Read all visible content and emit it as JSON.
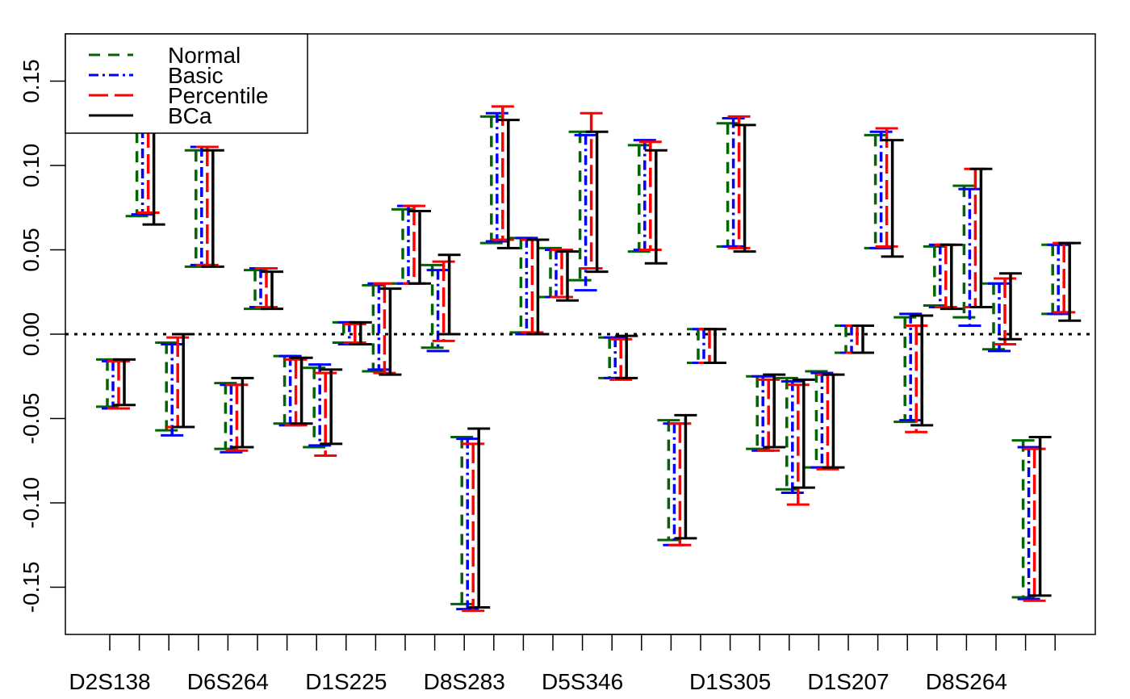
{
  "chart_data": {
    "type": "interval",
    "ylim": [
      -0.178,
      0.178
    ],
    "y_ticks": [
      -0.15,
      -0.1,
      -0.05,
      0.0,
      0.05,
      0.1,
      0.15
    ],
    "y_tick_labels": [
      "-0.15",
      "-0.10",
      "-0.05",
      "0.00",
      "0.05",
      "0.10",
      "0.15"
    ],
    "reference_line": 0,
    "grid": false,
    "x_tick_count": 33,
    "x_labels": [
      {
        "text": "D2S138",
        "tick": 1
      },
      {
        "text": "D6S264",
        "tick": 5
      },
      {
        "text": "D1S225",
        "tick": 9
      },
      {
        "text": "D8S283",
        "tick": 13
      },
      {
        "text": "D5S346",
        "tick": 17
      },
      {
        "text": "D1S305",
        "tick": 22
      },
      {
        "text": "D1S207",
        "tick": 26
      },
      {
        "text": "D8S264",
        "tick": 30
      }
    ],
    "legend": {
      "position": "top-left",
      "entries": [
        "Normal",
        "Basic",
        "Percentile",
        "BCa"
      ]
    },
    "series_styles": [
      {
        "name": "Normal",
        "color": "#006400",
        "dash": "14,10",
        "offset": -21
      },
      {
        "name": "Basic",
        "color": "#0000FF",
        "dash": "12,5,3,5",
        "offset": -14
      },
      {
        "name": "Percentile",
        "color": "#FF0000",
        "dash": "24,8",
        "offset": -7
      },
      {
        "name": "BCa",
        "color": "#000000",
        "dash": "",
        "offset": 0
      }
    ],
    "intervals": [
      {
        "slot": 1,
        "n": [
          -0.015,
          -0.043
        ],
        "b": [
          -0.016,
          -0.044
        ],
        "p": [
          -0.016,
          -0.044
        ],
        "bca": [
          -0.015,
          -0.042
        ]
      },
      {
        "slot": 2,
        "n": [
          0.12,
          0.07
        ],
        "b": [
          0.122,
          0.071
        ],
        "p": [
          0.122,
          0.072
        ],
        "bca": [
          0.12,
          0.065
        ]
      },
      {
        "slot": 3,
        "n": [
          -0.005,
          -0.057
        ],
        "b": [
          -0.006,
          -0.06
        ],
        "p": [
          -0.002,
          -0.055
        ],
        "bca": [
          0.0,
          -0.055
        ]
      },
      {
        "slot": 4,
        "n": [
          0.109,
          0.04
        ],
        "b": [
          0.111,
          0.041
        ],
        "p": [
          0.111,
          0.041
        ],
        "bca": [
          0.109,
          0.04
        ]
      },
      {
        "slot": 5,
        "n": [
          -0.029,
          -0.068
        ],
        "b": [
          -0.03,
          -0.07
        ],
        "p": [
          -0.03,
          -0.069
        ],
        "bca": [
          -0.026,
          -0.067
        ]
      },
      {
        "slot": 6,
        "n": [
          0.038,
          0.015
        ],
        "b": [
          0.039,
          0.016
        ],
        "p": [
          0.039,
          0.016
        ],
        "bca": [
          0.037,
          0.015
        ]
      },
      {
        "slot": 7,
        "n": [
          -0.013,
          -0.053
        ],
        "b": [
          -0.013,
          -0.054
        ],
        "p": [
          -0.015,
          -0.054
        ],
        "bca": [
          -0.014,
          -0.053
        ]
      },
      {
        "slot": 8,
        "n": [
          -0.02,
          -0.067
        ],
        "b": [
          -0.018,
          -0.066
        ],
        "p": [
          -0.023,
          -0.072
        ],
        "bca": [
          -0.021,
          -0.065
        ]
      },
      {
        "slot": 9,
        "n": [
          0.007,
          -0.005
        ],
        "b": [
          0.007,
          -0.006
        ],
        "p": [
          0.006,
          -0.005
        ],
        "bca": [
          0.007,
          -0.006
        ]
      },
      {
        "slot": 10,
        "n": [
          0.029,
          -0.022
        ],
        "b": [
          0.03,
          -0.021
        ],
        "p": [
          0.03,
          -0.023
        ],
        "bca": [
          0.027,
          -0.024
        ]
      },
      {
        "slot": 11,
        "n": [
          0.074,
          0.03
        ],
        "b": [
          0.076,
          0.03
        ],
        "p": [
          0.076,
          0.03
        ],
        "bca": [
          0.073,
          0.03
        ]
      },
      {
        "slot": 12,
        "n": [
          0.041,
          -0.008
        ],
        "b": [
          0.038,
          -0.01
        ],
        "p": [
          0.043,
          -0.004
        ],
        "bca": [
          0.047,
          0.0
        ]
      },
      {
        "slot": 13,
        "n": [
          -0.061,
          -0.16
        ],
        "b": [
          -0.062,
          -0.163
        ],
        "p": [
          -0.065,
          -0.164
        ],
        "bca": [
          -0.056,
          -0.162
        ]
      },
      {
        "slot": 14,
        "n": [
          0.129,
          0.054
        ],
        "b": [
          0.131,
          0.055
        ],
        "p": [
          0.135,
          0.056
        ],
        "bca": [
          0.127,
          0.051
        ]
      },
      {
        "slot": 15,
        "n": [
          0.057,
          0.001
        ],
        "b": [
          0.057,
          0.0
        ],
        "p": [
          0.056,
          0.001
        ],
        "bca": [
          0.056,
          0.0
        ]
      },
      {
        "slot": 16,
        "n": [
          0.051,
          0.022
        ],
        "b": [
          0.05,
          0.022
        ],
        "p": [
          0.05,
          0.022
        ],
        "bca": [
          0.049,
          0.02
        ]
      },
      {
        "slot": 17,
        "n": [
          0.12,
          0.032
        ],
        "b": [
          0.118,
          0.026
        ],
        "p": [
          0.131,
          0.039
        ],
        "bca": [
          0.12,
          0.037
        ]
      },
      {
        "slot": 18,
        "n": [
          -0.002,
          -0.026
        ],
        "b": [
          -0.002,
          -0.026
        ],
        "p": [
          -0.003,
          -0.027
        ],
        "bca": [
          -0.001,
          -0.026
        ]
      },
      {
        "slot": 19,
        "n": [
          0.112,
          0.049
        ],
        "b": [
          0.115,
          0.05
        ],
        "p": [
          0.114,
          0.05
        ],
        "bca": [
          0.109,
          0.042
        ]
      },
      {
        "slot": 20,
        "n": [
          -0.051,
          -0.122
        ],
        "b": [
          -0.053,
          -0.125
        ],
        "p": [
          -0.053,
          -0.125
        ],
        "bca": [
          -0.048,
          -0.121
        ]
      },
      {
        "slot": 21,
        "n": [
          0.003,
          -0.017
        ],
        "b": [
          0.003,
          -0.017
        ],
        "p": [
          0.003,
          -0.017
        ],
        "bca": [
          0.003,
          -0.017
        ]
      },
      {
        "slot": 22,
        "n": [
          0.125,
          0.052
        ],
        "b": [
          0.128,
          0.052
        ],
        "p": [
          0.129,
          0.051
        ],
        "bca": [
          0.124,
          0.049
        ]
      },
      {
        "slot": 23,
        "n": [
          -0.025,
          -0.068
        ],
        "b": [
          -0.025,
          -0.069
        ],
        "p": [
          -0.027,
          -0.069
        ],
        "bca": [
          -0.024,
          -0.067
        ]
      },
      {
        "slot": 24,
        "n": [
          -0.026,
          -0.092
        ],
        "b": [
          -0.028,
          -0.094
        ],
        "p": [
          -0.03,
          -0.101
        ],
        "bca": [
          -0.027,
          -0.091
        ]
      },
      {
        "slot": 25,
        "n": [
          -0.022,
          -0.079
        ],
        "b": [
          -0.023,
          -0.079
        ],
        "p": [
          -0.024,
          -0.08
        ],
        "bca": [
          -0.024,
          -0.079
        ]
      },
      {
        "slot": 26,
        "n": [
          0.005,
          -0.011
        ],
        "b": [
          0.005,
          -0.011
        ],
        "p": [
          0.005,
          -0.011
        ],
        "bca": [
          0.005,
          -0.011
        ]
      },
      {
        "slot": 27,
        "n": [
          0.118,
          0.051
        ],
        "b": [
          0.12,
          0.051
        ],
        "p": [
          0.122,
          0.052
        ],
        "bca": [
          0.115,
          0.046
        ]
      },
      {
        "slot": 28,
        "n": [
          0.01,
          -0.052
        ],
        "b": [
          0.012,
          -0.051
        ],
        "p": [
          0.005,
          -0.058
        ],
        "bca": [
          0.011,
          -0.054
        ]
      },
      {
        "slot": 29,
        "n": [
          0.052,
          0.017
        ],
        "b": [
          0.053,
          0.016
        ],
        "p": [
          0.053,
          0.016
        ],
        "bca": [
          0.053,
          0.015
        ]
      },
      {
        "slot": 30,
        "n": [
          0.088,
          0.01
        ],
        "b": [
          0.086,
          0.005
        ],
        "p": [
          0.098,
          0.016
        ],
        "bca": [
          0.098,
          0.016
        ]
      },
      {
        "slot": 31,
        "n": [
          0.03,
          -0.009
        ],
        "b": [
          0.03,
          -0.01
        ],
        "p": [
          0.033,
          -0.006
        ],
        "bca": [
          0.036,
          -0.003
        ]
      },
      {
        "slot": 32,
        "n": [
          -0.063,
          -0.156
        ],
        "b": [
          -0.067,
          -0.157
        ],
        "p": [
          -0.068,
          -0.158
        ],
        "bca": [
          -0.061,
          -0.155
        ]
      },
      {
        "slot": 33,
        "n": [
          0.053,
          0.012
        ],
        "b": [
          0.053,
          0.012
        ],
        "p": [
          0.054,
          0.013
        ],
        "bca": [
          0.054,
          0.008
        ]
      }
    ]
  }
}
